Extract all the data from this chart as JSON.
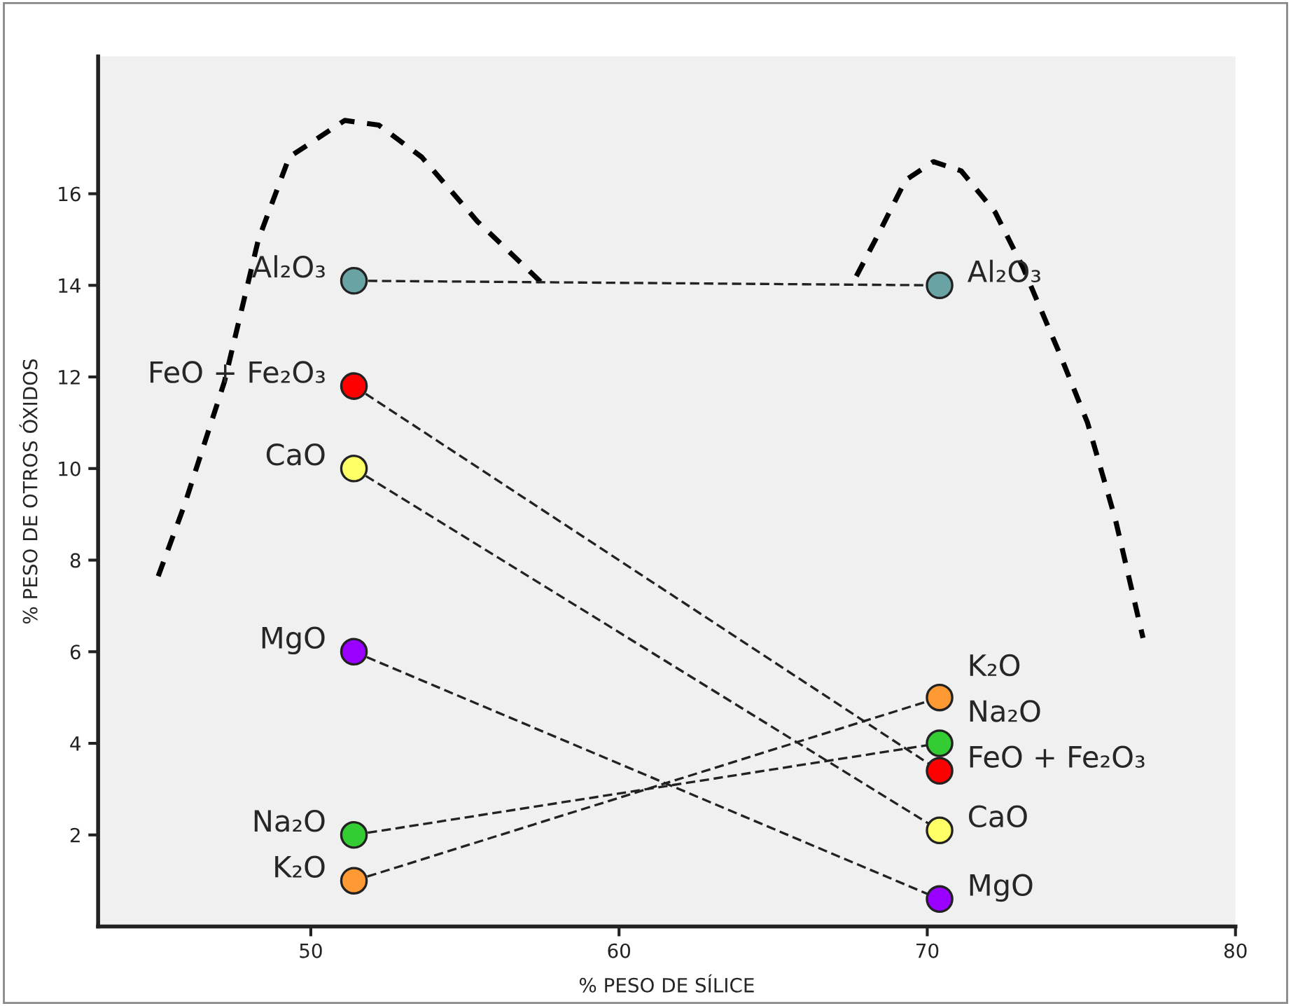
{
  "chart_data": {
    "type": "line",
    "xlabel": "% PESO DE SÍLICE",
    "ylabel": "% PESO DE OTROS ÓXIDOS",
    "xlim": [
      43.1,
      80
    ],
    "xticks": [
      50,
      60,
      70,
      80
    ],
    "ylim": [
      0,
      19
    ],
    "yticks": [
      2,
      4,
      6,
      8,
      10,
      12,
      14,
      16
    ],
    "grid": false,
    "legend": false,
    "series": [
      {
        "type": "line",
        "color": "#000000",
        "marker": "none",
        "line_style": "dashed",
        "x": [
          45.05,
          45.9,
          47.2,
          48.3,
          49.3,
          51.1,
          52.2,
          53.6,
          55.4,
          57.5,
          62.6,
          67.7,
          68.4,
          69.3,
          70.2,
          71.1,
          72.2,
          73.1,
          74.3,
          75.2,
          76.1,
          77.0
        ],
        "values": [
          7.65,
          9.2,
          11.9,
          15.0,
          16.8,
          17.6,
          17.5,
          16.8,
          15.4,
          14.05,
          null,
          14.2,
          15.1,
          16.3,
          16.7,
          16.5,
          15.6,
          14.4,
          12.5,
          11.0,
          8.9,
          6.3
        ]
      },
      {
        "name": "Al₂O₃",
        "color": "#6aa3a3",
        "marker": "circle",
        "line_style": "dashed",
        "x": [
          51.4,
          70.4
        ],
        "values": [
          14.1,
          14.0
        ]
      },
      {
        "name": "FeO + Fe₂O₃",
        "color": "#ff0000",
        "marker": "circle",
        "line_style": "dashed",
        "x": [
          51.4,
          70.4
        ],
        "values": [
          11.8,
          3.4
        ]
      },
      {
        "name": "CaO",
        "color": "#ffff66",
        "marker": "circle",
        "line_style": "dashed",
        "x": [
          51.4,
          70.4
        ],
        "values": [
          10.0,
          2.1
        ]
      },
      {
        "name": "MgO",
        "color": "#9900ff",
        "marker": "circle",
        "line_style": "dashed",
        "x": [
          51.4,
          70.4
        ],
        "values": [
          6.0,
          0.6
        ]
      },
      {
        "name": "Na₂O",
        "color": "#33cc33",
        "marker": "circle",
        "line_style": "dashed",
        "x": [
          51.4,
          70.4
        ],
        "values": [
          2.0,
          4.0
        ]
      },
      {
        "name": "K₂O",
        "color": "#ff9933",
        "marker": "circle",
        "line_style": "dashed",
        "x": [
          51.4,
          70.4
        ],
        "values": [
          1.0,
          5.0
        ]
      }
    ]
  }
}
